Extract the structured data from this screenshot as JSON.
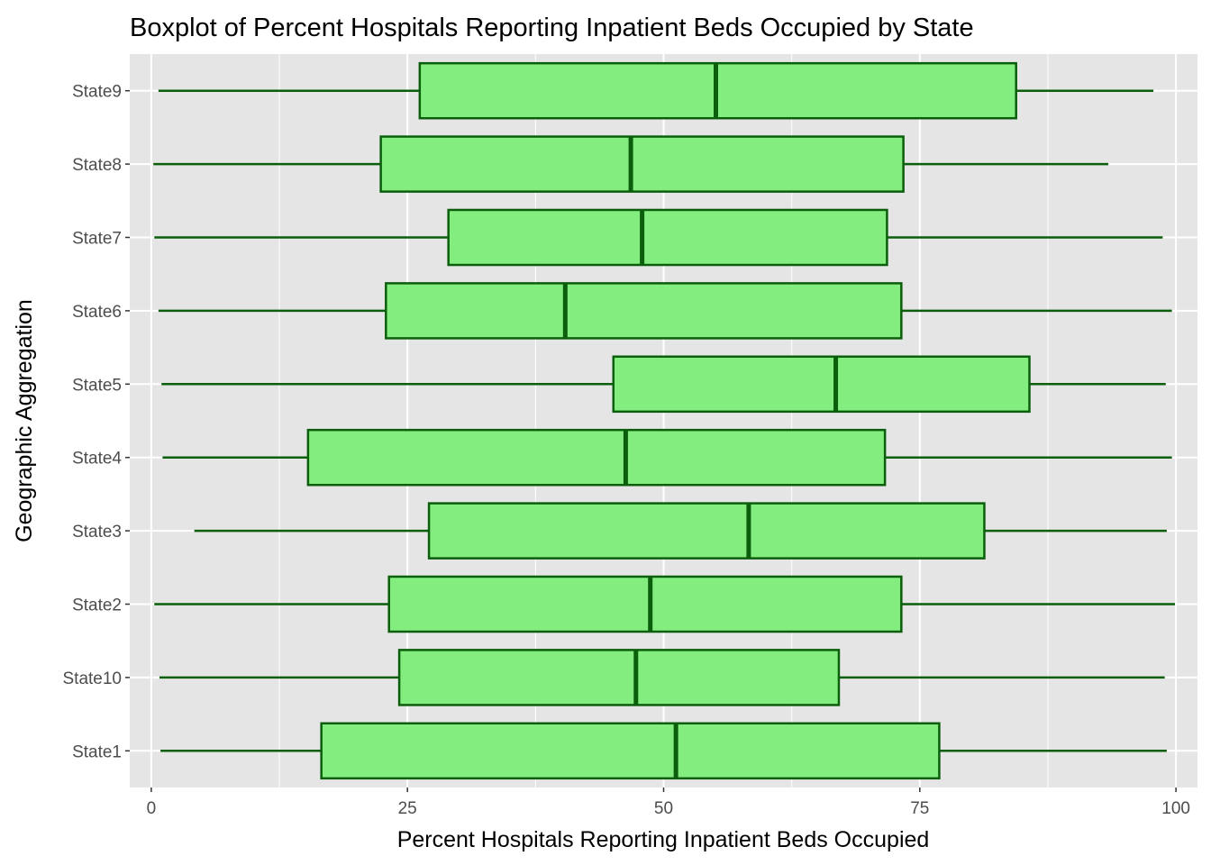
{
  "chart_data": {
    "type": "boxplot",
    "orientation": "horizontal",
    "title": "Boxplot of Percent Hospitals Reporting Inpatient Beds Occupied by State",
    "xlabel": "Percent Hospitals Reporting Inpatient Beds Occupied",
    "ylabel": "Geographic Aggregation",
    "xlim": [
      -2.1,
      102.1
    ],
    "xticks": [
      0,
      25,
      50,
      75,
      100
    ],
    "grid": true,
    "legend": "none",
    "colors": {
      "panel": "#e5e5e5",
      "grid": "#ffffff",
      "box_fill": "#83ee7f",
      "box_line": "#0b5e0b",
      "tick_text": "#4d4d4d"
    },
    "categories": [
      "State1",
      "State10",
      "State2",
      "State3",
      "State4",
      "State5",
      "State6",
      "State7",
      "State8",
      "State9"
    ],
    "boxes": [
      {
        "category": "State1",
        "min": 0.9,
        "q1": 16.6,
        "median": 51.2,
        "q3": 76.9,
        "max": 99.1
      },
      {
        "category": "State10",
        "min": 0.8,
        "q1": 24.2,
        "median": 47.3,
        "q3": 67.1,
        "max": 98.9
      },
      {
        "category": "State2",
        "min": 0.3,
        "q1": 23.2,
        "median": 48.7,
        "q3": 73.2,
        "max": 99.9
      },
      {
        "category": "State3",
        "min": 4.2,
        "q1": 27.1,
        "median": 58.3,
        "q3": 81.3,
        "max": 99.1
      },
      {
        "category": "State4",
        "min": 1.1,
        "q1": 15.3,
        "median": 46.3,
        "q3": 71.6,
        "max": 99.6
      },
      {
        "category": "State5",
        "min": 1.0,
        "q1": 45.1,
        "median": 66.8,
        "q3": 85.7,
        "max": 99.0
      },
      {
        "category": "State6",
        "min": 0.7,
        "q1": 22.9,
        "median": 40.4,
        "q3": 73.2,
        "max": 99.6
      },
      {
        "category": "State7",
        "min": 0.3,
        "q1": 29.0,
        "median": 47.9,
        "q3": 71.8,
        "max": 98.7
      },
      {
        "category": "State8",
        "min": 0.2,
        "q1": 22.4,
        "median": 46.8,
        "q3": 73.4,
        "max": 93.4
      },
      {
        "category": "State9",
        "min": 0.7,
        "q1": 26.2,
        "median": 55.1,
        "q3": 84.4,
        "max": 97.8
      }
    ]
  }
}
